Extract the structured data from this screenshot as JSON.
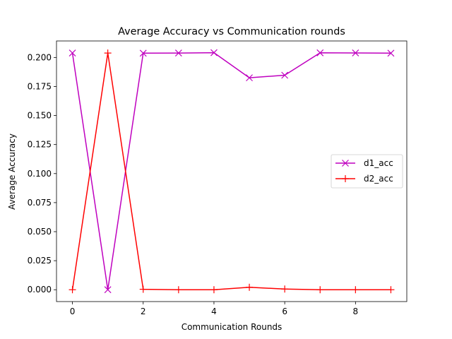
{
  "chart_data": {
    "type": "line",
    "title": "Average Accuracy vs Communication rounds",
    "xlabel": "Communication Rounds",
    "ylabel": "Average Accuracy",
    "x": [
      0,
      1,
      2,
      3,
      4,
      5,
      6,
      7,
      8,
      9
    ],
    "xlim": [
      -0.45,
      9.45
    ],
    "ylim": [
      -0.0102,
      0.2142
    ],
    "xticks": [
      0,
      2,
      4,
      6,
      8
    ],
    "yticks": [
      0.0,
      0.025,
      0.05,
      0.075,
      0.1,
      0.125,
      0.15,
      0.175,
      0.2
    ],
    "xtick_labels": [
      "0",
      "2",
      "4",
      "6",
      "8"
    ],
    "ytick_labels": [
      "0.000",
      "0.025",
      "0.050",
      "0.075",
      "0.100",
      "0.125",
      "0.150",
      "0.175",
      "0.200"
    ],
    "grid": false,
    "legend_position": "center-right",
    "series": [
      {
        "name": "d1_acc",
        "color": "#bf00bf",
        "marker": "x",
        "values": [
          0.2038,
          0.0,
          0.2037,
          0.2038,
          0.2041,
          0.1825,
          0.1847,
          0.204,
          0.2039,
          0.2037
        ]
      },
      {
        "name": "d2_acc",
        "color": "#ff0000",
        "marker": "+",
        "values": [
          0.0,
          0.2038,
          0.0004,
          0.0,
          0.0,
          0.0021,
          0.0006,
          0.0,
          0.0,
          0.0
        ]
      }
    ]
  }
}
